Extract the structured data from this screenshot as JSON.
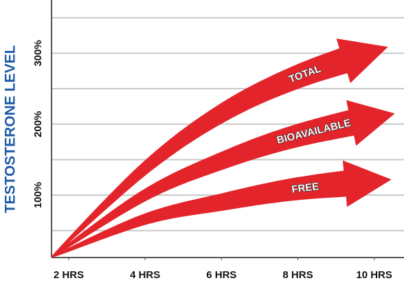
{
  "chart_data": {
    "type": "arrow",
    "y_label": "TESTOSTERONE LEVEL",
    "xlim": [
      1.55,
      10.78
    ],
    "xticks": [
      {
        "value": 2,
        "label": "2 HRS"
      },
      {
        "value": 4,
        "label": "4 HRS"
      },
      {
        "value": 6,
        "label": "6 HRS"
      },
      {
        "value": 8,
        "label": "8 HRS"
      },
      {
        "value": 10,
        "label": "10 HRS"
      }
    ],
    "ylim": [
      12,
      375
    ],
    "yticks": [
      {
        "value": 100,
        "label": "100%"
      },
      {
        "value": 200,
        "label": "200%"
      },
      {
        "value": 300,
        "label": "300%"
      }
    ],
    "minor_yticks": [
      50,
      150,
      250,
      350
    ],
    "grid": true,
    "series": [
      {
        "name": "TOTAL",
        "color": "#e3242b",
        "x": [
          1.55,
          4,
          6,
          8,
          10.36
        ],
        "values": [
          12.6,
          138,
          215,
          267,
          309
        ]
      },
      {
        "name": "BIOAVAILABLE",
        "color": "#e3242b",
        "x": [
          1.55,
          4,
          6,
          8,
          10.54
        ],
        "values": [
          12.6,
          100,
          148,
          184,
          215
        ]
      },
      {
        "name": "FREE",
        "color": "#e3242b",
        "x": [
          1.55,
          4,
          6,
          8,
          10.45
        ],
        "values": [
          12.6,
          66,
          90,
          109,
          122
        ]
      }
    ]
  }
}
